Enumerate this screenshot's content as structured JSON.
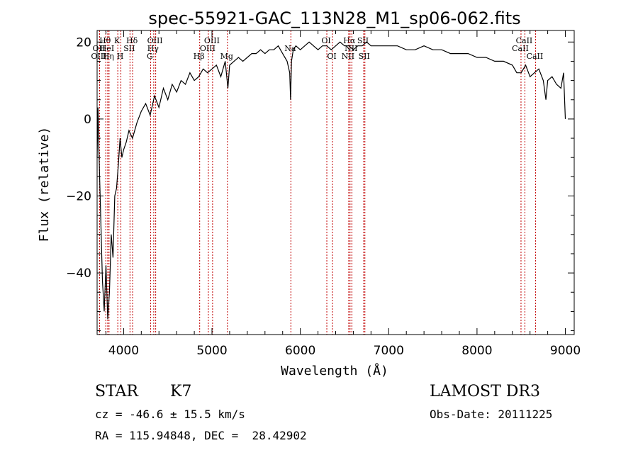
{
  "chart_data": {
    "type": "line",
    "title": "spec-55921-GAC_113N28_M1_sp06-062.fits",
    "xlabel": "Wavelength (Å)",
    "ylabel": "Flux (relative)",
    "xlim": [
      3700,
      9100
    ],
    "ylim": [
      -56,
      23
    ],
    "xticks": [
      4000,
      5000,
      6000,
      7000,
      8000,
      9000
    ],
    "yticks": [
      -40,
      -20,
      0,
      20
    ],
    "grid": false,
    "series": [
      {
        "name": "flux",
        "x": [
          3700,
          3710,
          3720,
          3740,
          3760,
          3780,
          3800,
          3820,
          3840,
          3860,
          3880,
          3900,
          3920,
          3940,
          3960,
          3980,
          4000,
          4030,
          4060,
          4100,
          4150,
          4200,
          4250,
          4300,
          4350,
          4400,
          4450,
          4500,
          4550,
          4600,
          4650,
          4700,
          4750,
          4800,
          4850,
          4900,
          4950,
          5000,
          5050,
          5100,
          5150,
          5180,
          5200,
          5250,
          5300,
          5350,
          5400,
          5450,
          5500,
          5550,
          5600,
          5650,
          5700,
          5750,
          5800,
          5850,
          5880,
          5890,
          5900,
          5920,
          5950,
          6000,
          6050,
          6100,
          6150,
          6200,
          6250,
          6300,
          6350,
          6400,
          6450,
          6500,
          6550,
          6600,
          6650,
          6700,
          6750,
          6800,
          6900,
          7000,
          7100,
          7200,
          7300,
          7400,
          7500,
          7600,
          7700,
          7800,
          7900,
          8000,
          8100,
          8200,
          8300,
          8400,
          8450,
          8500,
          8550,
          8600,
          8650,
          8700,
          8750,
          8780,
          8800,
          8850,
          8900,
          8950,
          8980,
          9000
        ],
        "y": [
          -10,
          3,
          -8,
          -25,
          -42,
          -50,
          -38,
          -52,
          -45,
          -30,
          -36,
          -20,
          -18,
          -12,
          -5,
          -10,
          -8,
          -6,
          -3,
          -5,
          -1,
          2,
          4,
          1,
          6,
          3,
          8,
          5,
          9,
          7,
          10,
          9,
          12,
          10,
          11,
          13,
          12,
          13,
          14,
          11,
          15,
          8,
          14,
          15,
          16,
          15,
          16,
          17,
          17,
          18,
          17,
          18,
          18,
          19,
          17,
          15,
          12,
          5,
          15,
          18,
          19,
          18,
          19,
          20,
          19,
          18,
          19,
          19,
          18,
          19,
          20,
          19,
          19,
          18,
          19,
          19,
          20,
          19,
          19,
          19,
          19,
          18,
          18,
          19,
          18,
          18,
          17,
          17,
          17,
          16,
          16,
          15,
          15,
          14,
          12,
          12,
          14,
          11,
          12,
          13,
          10,
          5,
          10,
          11,
          9,
          8,
          12,
          0
        ]
      }
    ],
    "lines": [
      {
        "name": "Hθ",
        "x": 3798,
        "row": 0
      },
      {
        "name": "OII",
        "x": 3727,
        "row": 1
      },
      {
        "name": "OIII",
        "x": 3727,
        "row": 2
      },
      {
        "name": "HeI",
        "x": 3820,
        "row": 1
      },
      {
        "name": "Hη",
        "x": 3835,
        "row": 2
      },
      {
        "name": "K",
        "x": 3934,
        "row": 0
      },
      {
        "name": "H",
        "x": 3969,
        "row": 2
      },
      {
        "name": "SII",
        "x": 4072,
        "row": 1
      },
      {
        "name": "Hδ",
        "x": 4102,
        "row": 0
      },
      {
        "name": "OIII",
        "x": 4363,
        "row": 0
      },
      {
        "name": "Hγ",
        "x": 4341,
        "row": 1
      },
      {
        "name": "G",
        "x": 4305,
        "row": 2
      },
      {
        "name": "Hβ",
        "x": 4861,
        "row": 2
      },
      {
        "name": "OIII",
        "x": 4959,
        "row": 1
      },
      {
        "name": "OIII",
        "x": 5007,
        "row": 0
      },
      {
        "name": "Mg",
        "x": 5175,
        "row": 2
      },
      {
        "name": "Na",
        "x": 5893,
        "row": 1
      },
      {
        "name": "OI",
        "x": 6300,
        "row": 0
      },
      {
        "name": "OI",
        "x": 6364,
        "row": 2
      },
      {
        "name": "Hα",
        "x": 6563,
        "row": 0
      },
      {
        "name": "NII",
        "x": 6548,
        "row": 2
      },
      {
        "name": "NII",
        "x": 6583,
        "row": 1
      },
      {
        "name": "SII",
        "x": 6717,
        "row": 0
      },
      {
        "name": "SII",
        "x": 6731,
        "row": 2
      },
      {
        "name": "CaII",
        "x": 8498,
        "row": 1
      },
      {
        "name": "CaII",
        "x": 8542,
        "row": 0
      },
      {
        "name": "CaII",
        "x": 8662,
        "row": 2
      }
    ]
  },
  "info": {
    "object_type": "STAR",
    "subclass": "K7",
    "survey": "LAMOST DR3",
    "cz": "cz = -46.6 ± 15.5 km/s",
    "obs_date": "Obs-Date: 20111225",
    "coords": "RA = 115.94848, DEC =  28.42902"
  }
}
